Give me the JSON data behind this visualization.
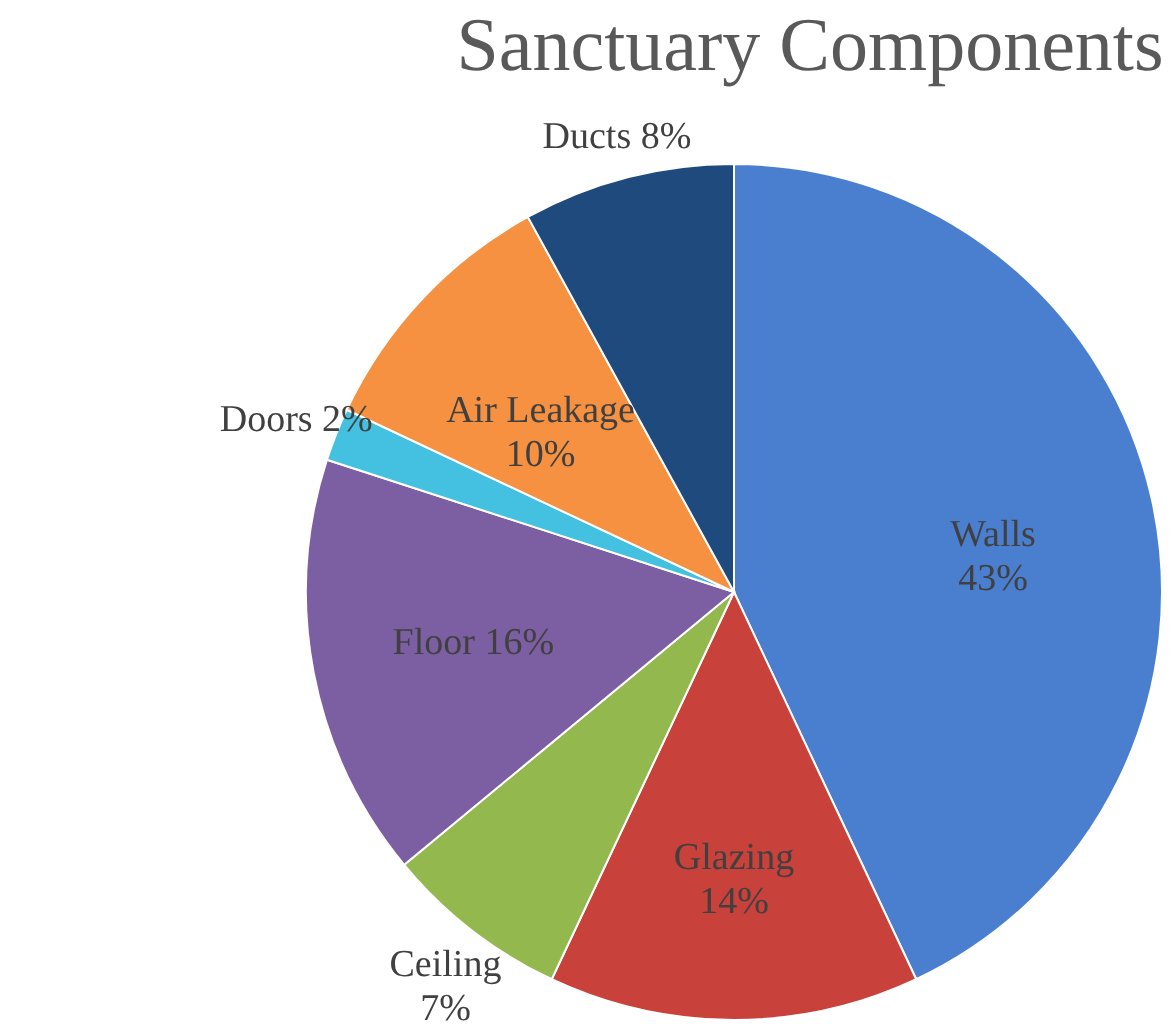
{
  "chart_data": {
    "type": "pie",
    "title": "Sanctuary Components",
    "categories": [
      "Walls",
      "Glazing",
      "Ceiling",
      "Floor",
      "Doors",
      "Air Leakage",
      "Ducts"
    ],
    "values": [
      43,
      14,
      7,
      16,
      2,
      10,
      8
    ],
    "value_labels": [
      "43%",
      "14%",
      "7%",
      "16%",
      "2%",
      "10%",
      "8%"
    ],
    "colors": [
      "#4a7fd0",
      "#c8413a",
      "#93b84e",
      "#7c5fa3",
      "#44c0e0",
      "#f59140",
      "#1f4a7e"
    ]
  }
}
